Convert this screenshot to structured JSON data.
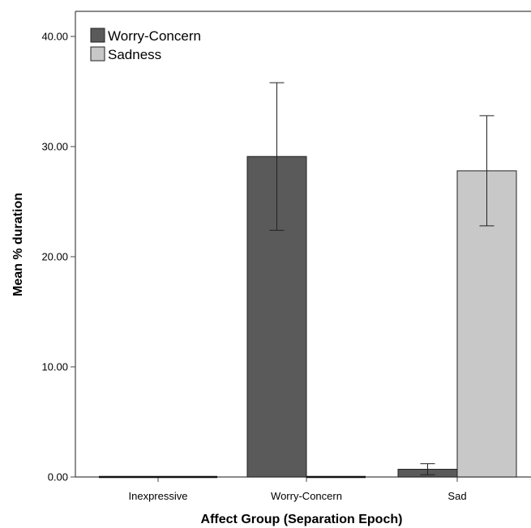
{
  "chart_data": {
    "type": "bar",
    "title": "",
    "xlabel": "Affect Group (Separation Epoch)",
    "ylabel": "Mean % duration",
    "categories": [
      "Inexpressive",
      "Worry-Concern",
      "Sad"
    ],
    "ylim": [
      0,
      40
    ],
    "yticks": [
      "0.00",
      "10.00",
      "20.00",
      "30.00",
      "40.00"
    ],
    "grid": false,
    "legend_position": "top-left",
    "series": [
      {
        "name": "Worry-Concern",
        "color": "#5a5a5a",
        "values": [
          0.0,
          29.1,
          0.7
        ],
        "error_low": [
          null,
          22.4,
          0.2
        ],
        "error_high": [
          null,
          35.8,
          1.2
        ]
      },
      {
        "name": "Sadness",
        "color": "#c8c8c8",
        "values": [
          0.0,
          0.0,
          27.8
        ],
        "error_low": [
          null,
          null,
          22.8
        ],
        "error_high": [
          null,
          null,
          32.8
        ]
      }
    ]
  }
}
